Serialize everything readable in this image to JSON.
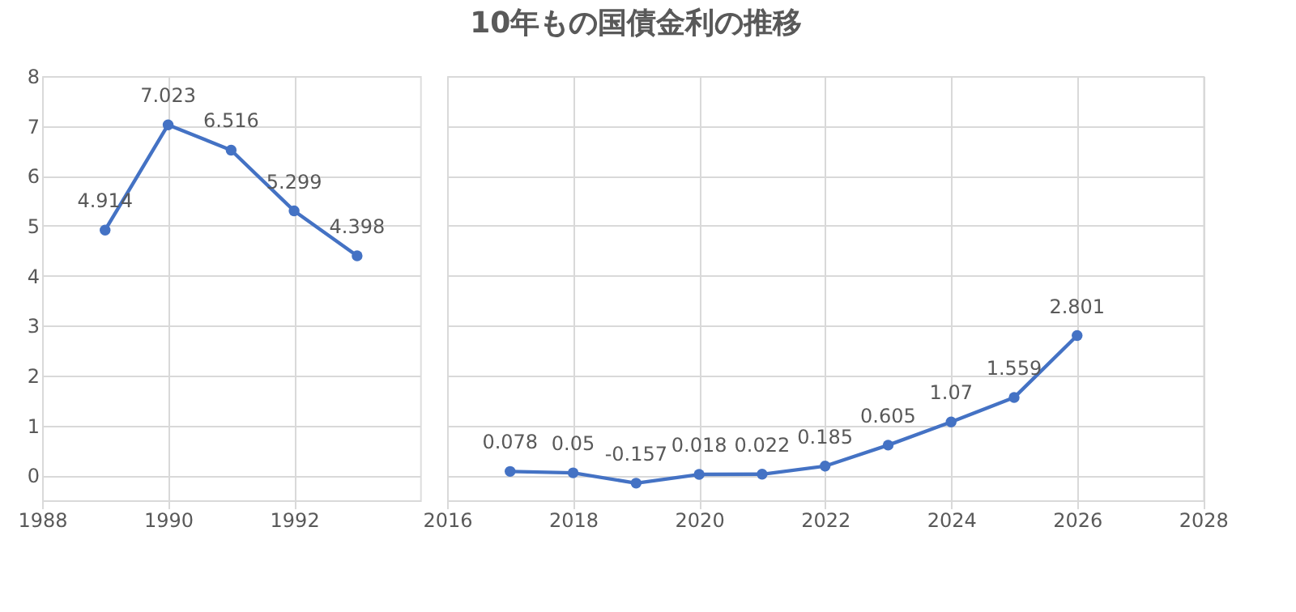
{
  "chart_data": [
    {
      "type": "line",
      "x": [
        1989,
        1990,
        1991,
        1992,
        1993
      ],
      "series": [
        {
          "color": "#4472c4",
          "values": [
            4.914,
            7.023,
            6.516,
            5.299,
            4.398
          ]
        }
      ],
      "xlim": [
        1988,
        1994
      ],
      "xticks": [
        1988,
        1990,
        1992
      ],
      "ylim": [
        -0.5,
        8
      ],
      "yticks": [
        0,
        1,
        2,
        3,
        4,
        5,
        6,
        7,
        8
      ],
      "grid": true,
      "marker": "circle",
      "data_labels": true
    },
    {
      "type": "line",
      "x": [
        2017,
        2018,
        2019,
        2020,
        2021,
        2022,
        2023,
        2024,
        2025,
        2026
      ],
      "series": [
        {
          "color": "#4472c4",
          "values": [
            0.078,
            0.05,
            -0.157,
            0.018,
            0.022,
            0.185,
            0.605,
            1.07,
            1.559,
            2.801
          ]
        }
      ],
      "xlim": [
        2016,
        2028
      ],
      "xticks": [
        2016,
        2018,
        2020,
        2022,
        2024,
        2026,
        2028
      ],
      "ylim": [
        -0.5,
        8
      ],
      "yticks": [
        0,
        1,
        2,
        3,
        4,
        5,
        6,
        7,
        8
      ],
      "grid": true,
      "marker": "circle",
      "data_labels": true,
      "tick_labels": "x",
      "title": "10年もの国債金利の推移"
    }
  ]
}
